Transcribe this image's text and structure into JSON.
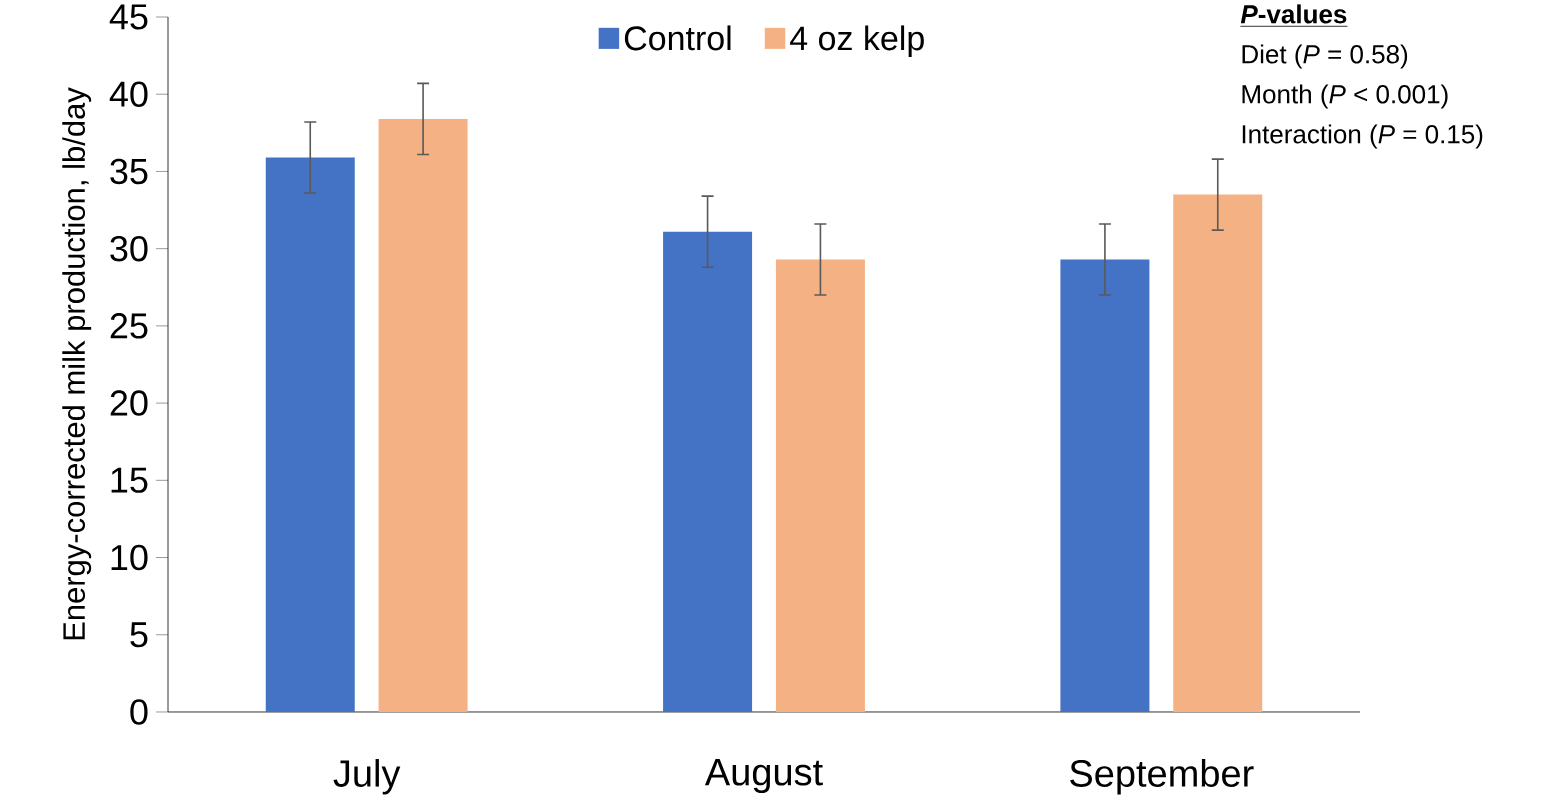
{
  "chart_data": {
    "type": "bar",
    "ylabel": "Energy-corrected milk production, lb/day",
    "categories": [
      "July",
      "August",
      "September"
    ],
    "series": [
      {
        "name": "Control",
        "color": "#4472c4",
        "values": [
          35.9,
          31.1,
          29.3
        ],
        "errors": [
          2.3,
          2.3,
          2.3
        ]
      },
      {
        "name": "4 oz kelp",
        "color": "#f4b183",
        "values": [
          38.4,
          29.3,
          33.5
        ],
        "errors": [
          2.3,
          2.3,
          2.3
        ]
      }
    ],
    "ylim": [
      0,
      45
    ],
    "yticks": [
      0,
      5,
      10,
      15,
      20,
      25,
      30,
      35,
      40,
      45
    ],
    "legend": "top",
    "annotations": [
      "*P*-values",
      "Diet (*P* = 0.58)",
      "Month (*P* < 0.001)",
      "Interaction (*P* = 0.15)"
    ]
  }
}
